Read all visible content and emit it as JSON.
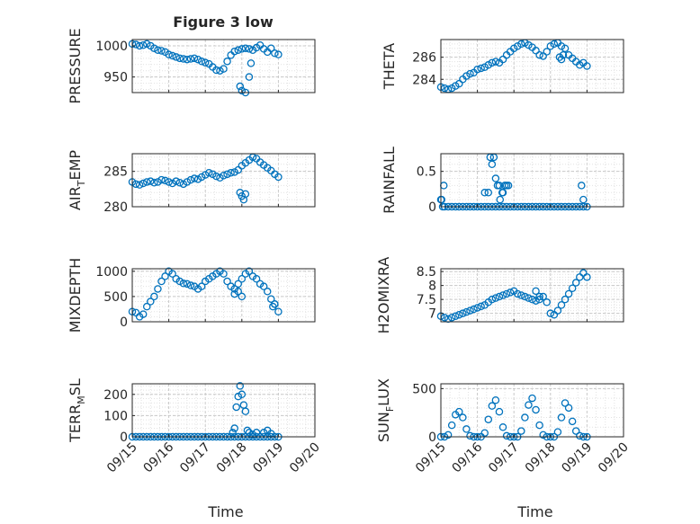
{
  "figure": {
    "title": "Figure 3 low",
    "xlabel": "Time",
    "xticks": [
      "09/15",
      "09/16",
      "09/17",
      "09/18",
      "09/19",
      "09/20"
    ],
    "marker_color": "#0072BD",
    "axis_color": "#262626",
    "grid_color": "#d9d9d9"
  },
  "chart_data": [
    {
      "type": "scatter",
      "id": "pressure",
      "position": "top-left",
      "ylabel": "PRESSURE",
      "ylim": [
        925,
        1010
      ],
      "yticks": [
        950,
        1000
      ],
      "x": [
        0,
        0.1,
        0.2,
        0.3,
        0.4,
        0.5,
        0.6,
        0.7,
        0.8,
        0.9,
        1.0,
        1.1,
        1.2,
        1.3,
        1.4,
        1.5,
        1.6,
        1.7,
        1.8,
        1.9,
        2.0,
        2.1,
        2.2,
        2.3,
        2.4,
        2.5,
        2.6,
        2.7,
        2.8,
        2.9,
        3.0,
        3.1,
        3.2,
        3.3,
        3.4,
        3.5,
        3.6,
        3.7,
        3.8,
        3.9,
        4.0,
        2.95,
        3.0,
        3.1,
        3.2,
        3.25
      ],
      "y": [
        1003,
        1002,
        1000,
        1001,
        1003,
        1000,
        996,
        993,
        992,
        990,
        986,
        984,
        982,
        980,
        979,
        978,
        979,
        980,
        978,
        975,
        973,
        971,
        966,
        961,
        960,
        963,
        975,
        985,
        991,
        993,
        995,
        996,
        995,
        993,
        997,
        1001,
        995,
        990,
        996,
        988,
        986,
        935,
        928,
        925,
        950,
        972
      ]
    },
    {
      "type": "scatter",
      "id": "theta",
      "position": "top-right",
      "ylabel": "THETA",
      "ylim": [
        282.8,
        287.6
      ],
      "yticks": [
        284,
        286
      ],
      "x": [
        0,
        0.1,
        0.2,
        0.3,
        0.4,
        0.5,
        0.6,
        0.7,
        0.8,
        0.9,
        1.0,
        1.1,
        1.2,
        1.3,
        1.4,
        1.5,
        1.6,
        1.7,
        1.8,
        1.9,
        2.0,
        2.1,
        2.2,
        2.3,
        2.4,
        2.5,
        2.6,
        2.7,
        2.8,
        2.9,
        3.0,
        3.1,
        3.2,
        3.3,
        3.4,
        3.5,
        3.6,
        3.7,
        3.8,
        3.9,
        4.0,
        3.25,
        3.3,
        3.35
      ],
      "y": [
        283.3,
        283.2,
        283.1,
        283.2,
        283.4,
        283.6,
        284.0,
        284.3,
        284.5,
        284.6,
        284.9,
        285.0,
        285.1,
        285.3,
        285.5,
        285.6,
        285.5,
        285.8,
        286.2,
        286.5,
        286.8,
        287.0,
        287.2,
        287.3,
        287.1,
        286.9,
        286.6,
        286.2,
        286.1,
        286.5,
        287.0,
        287.2,
        287.3,
        287.0,
        286.8,
        286.2,
        285.9,
        285.6,
        285.3,
        285.5,
        285.2,
        286.0,
        285.8,
        286.2
      ]
    },
    {
      "type": "scatter",
      "id": "air-temp",
      "position": "upper-middle-left",
      "ylabel": "AIR_TEMP",
      "ylim": [
        280,
        287.5
      ],
      "yticks": [
        280,
        285
      ],
      "x": [
        0,
        0.1,
        0.2,
        0.3,
        0.4,
        0.5,
        0.6,
        0.7,
        0.8,
        0.9,
        1.0,
        1.1,
        1.2,
        1.3,
        1.4,
        1.5,
        1.6,
        1.7,
        1.8,
        1.9,
        2.0,
        2.1,
        2.2,
        2.3,
        2.4,
        2.5,
        2.6,
        2.7,
        2.8,
        2.9,
        3.0,
        3.1,
        3.2,
        3.3,
        3.4,
        3.5,
        3.6,
        3.7,
        3.8,
        3.9,
        4.0,
        2.95,
        3.0,
        3.05,
        3.1
      ],
      "y": [
        283.5,
        283.2,
        283.1,
        283.3,
        283.5,
        283.6,
        283.4,
        283.5,
        283.8,
        283.7,
        283.5,
        283.3,
        283.6,
        283.4,
        283.2,
        283.5,
        283.8,
        284.0,
        283.9,
        284.2,
        284.5,
        284.8,
        284.6,
        284.3,
        284.1,
        284.4,
        284.6,
        284.8,
        284.9,
        285.2,
        285.8,
        286.2,
        286.6,
        287.0,
        286.8,
        286.3,
        285.9,
        285.5,
        285.1,
        284.6,
        284.2,
        282.0,
        281.5,
        281.0,
        281.8
      ]
    },
    {
      "type": "scatter",
      "id": "rainfall",
      "position": "upper-middle-right",
      "ylabel": "RAINFALL",
      "ylim": [
        0,
        0.75
      ],
      "yticks": [
        0,
        0.5
      ],
      "x": [
        0,
        0.1,
        0.2,
        0.3,
        0.4,
        0.5,
        0.6,
        0.7,
        0.8,
        0.9,
        1.0,
        1.1,
        1.2,
        1.3,
        1.4,
        1.5,
        1.6,
        1.7,
        1.8,
        1.9,
        2.0,
        2.1,
        2.2,
        2.3,
        2.4,
        2.5,
        2.6,
        2.7,
        2.8,
        2.9,
        3.0,
        3.1,
        3.2,
        3.3,
        3.4,
        3.5,
        3.6,
        3.7,
        3.8,
        3.9,
        4.0,
        0.02,
        0.08,
        0.05,
        1.2,
        1.3,
        1.35,
        1.4,
        1.45,
        1.5,
        1.55,
        1.6,
        1.7,
        1.75,
        1.8,
        1.85,
        1.62,
        1.68,
        3.85,
        3.9
      ],
      "y": [
        0.1,
        0,
        0,
        0,
        0,
        0,
        0,
        0,
        0,
        0,
        0,
        0,
        0,
        0,
        0,
        0,
        0,
        0,
        0,
        0,
        0,
        0,
        0,
        0,
        0,
        0,
        0,
        0,
        0,
        0,
        0,
        0,
        0,
        0,
        0,
        0,
        0,
        0,
        0,
        0,
        0,
        0.1,
        0.3,
        0,
        0.2,
        0.2,
        0.7,
        0.6,
        0.7,
        0.4,
        0.3,
        0.3,
        0.2,
        0.3,
        0.3,
        0.3,
        0.1,
        0.2,
        0.3,
        0.1
      ]
    },
    {
      "type": "scatter",
      "id": "mixdepth",
      "position": "lower-middle-left",
      "ylabel": "MIXDEPTH",
      "ylim": [
        0,
        1050
      ],
      "yticks": [
        0,
        500,
        1000
      ],
      "x": [
        0,
        0.1,
        0.2,
        0.3,
        0.4,
        0.5,
        0.6,
        0.7,
        0.8,
        0.9,
        1.0,
        1.1,
        1.2,
        1.3,
        1.4,
        1.5,
        1.6,
        1.7,
        1.8,
        1.9,
        2.0,
        2.1,
        2.2,
        2.3,
        2.4,
        2.5,
        2.6,
        2.7,
        2.8,
        2.9,
        3.0,
        3.1,
        3.2,
        3.3,
        3.4,
        3.5,
        3.6,
        3.7,
        3.8,
        3.9,
        4.0,
        2.8,
        2.9,
        3.0,
        3.85,
        3.9
      ],
      "y": [
        200,
        180,
        100,
        150,
        300,
        400,
        500,
        650,
        800,
        900,
        1000,
        950,
        850,
        800,
        760,
        750,
        720,
        700,
        650,
        700,
        800,
        850,
        900,
        950,
        1000,
        950,
        800,
        700,
        650,
        750,
        850,
        950,
        1000,
        900,
        850,
        750,
        700,
        600,
        450,
        350,
        200,
        550,
        600,
        500,
        300,
        350
      ]
    },
    {
      "type": "scatter",
      "id": "h2omixra",
      "position": "lower-middle-right",
      "ylabel": "H2OMIXRA",
      "ylim": [
        6.7,
        8.6
      ],
      "yticks": [
        7,
        7.5,
        8,
        8.5
      ],
      "x": [
        0,
        0.1,
        0.2,
        0.3,
        0.4,
        0.5,
        0.6,
        0.7,
        0.8,
        0.9,
        1.0,
        1.1,
        1.2,
        1.3,
        1.4,
        1.5,
        1.6,
        1.7,
        1.8,
        1.9,
        2.0,
        2.1,
        2.2,
        2.3,
        2.4,
        2.5,
        2.6,
        2.7,
        2.8,
        2.9,
        3.0,
        3.1,
        3.2,
        3.3,
        3.4,
        3.5,
        3.6,
        3.7,
        3.8,
        3.9,
        4.0,
        2.6,
        2.7
      ],
      "y": [
        6.9,
        6.85,
        6.8,
        6.85,
        6.9,
        6.95,
        7.0,
        7.05,
        7.1,
        7.15,
        7.2,
        7.25,
        7.3,
        7.4,
        7.5,
        7.55,
        7.6,
        7.65,
        7.7,
        7.75,
        7.8,
        7.7,
        7.65,
        7.6,
        7.55,
        7.5,
        7.45,
        7.5,
        7.6,
        7.4,
        7.0,
        6.95,
        7.1,
        7.3,
        7.5,
        7.7,
        7.9,
        8.1,
        8.3,
        8.45,
        8.3,
        7.8,
        7.6
      ]
    },
    {
      "type": "scatter",
      "id": "terr-msl",
      "position": "bottom-left",
      "ylabel": "TERR_MSL",
      "ylim": [
        0,
        250
      ],
      "yticks": [
        0,
        100,
        200
      ],
      "x": [
        0,
        0.1,
        0.2,
        0.3,
        0.4,
        0.5,
        0.6,
        0.7,
        0.8,
        0.9,
        1.0,
        1.1,
        1.2,
        1.3,
        1.4,
        1.5,
        1.6,
        1.7,
        1.8,
        1.9,
        2.0,
        2.1,
        2.2,
        2.3,
        2.4,
        2.5,
        2.6,
        2.7,
        2.8,
        2.9,
        3.0,
        3.1,
        3.2,
        3.3,
        3.4,
        3.5,
        3.6,
        3.7,
        3.8,
        3.9,
        4.0,
        2.75,
        2.8,
        2.85,
        2.9,
        2.95,
        3.0,
        3.05,
        3.1,
        3.15,
        3.2,
        3.3,
        3.4,
        3.6,
        3.7,
        3.8
      ],
      "y": [
        0,
        0,
        0,
        0,
        0,
        0,
        0,
        0,
        0,
        0,
        0,
        0,
        0,
        0,
        0,
        0,
        0,
        0,
        0,
        0,
        0,
        0,
        0,
        0,
        0,
        0,
        0,
        0,
        0,
        0,
        0,
        0,
        0,
        0,
        0,
        0,
        0,
        0,
        0,
        0,
        0,
        20,
        40,
        140,
        190,
        240,
        200,
        150,
        120,
        30,
        20,
        10,
        20,
        20,
        30,
        15
      ]
    },
    {
      "type": "scatter",
      "id": "sun-flux",
      "position": "bottom-right",
      "ylabel": "SUN_FLUX",
      "ylim": [
        0,
        550
      ],
      "yticks": [
        0,
        500
      ],
      "x": [
        0,
        0.1,
        0.2,
        0.3,
        0.4,
        0.5,
        0.6,
        0.7,
        0.8,
        0.9,
        1.0,
        1.1,
        1.2,
        1.3,
        1.4,
        1.5,
        1.6,
        1.7,
        1.8,
        1.9,
        2.0,
        2.1,
        2.2,
        2.3,
        2.4,
        2.5,
        2.6,
        2.7,
        2.8,
        2.9,
        3.0,
        3.1,
        3.2,
        3.3,
        3.4,
        3.5,
        3.6,
        3.7,
        3.8,
        3.9,
        4.0
      ],
      "y": [
        0,
        0,
        20,
        120,
        230,
        260,
        200,
        80,
        10,
        0,
        0,
        0,
        40,
        180,
        320,
        380,
        260,
        100,
        10,
        0,
        0,
        0,
        60,
        200,
        330,
        400,
        280,
        120,
        20,
        0,
        0,
        0,
        50,
        200,
        350,
        300,
        160,
        60,
        10,
        0,
        0
      ]
    }
  ]
}
